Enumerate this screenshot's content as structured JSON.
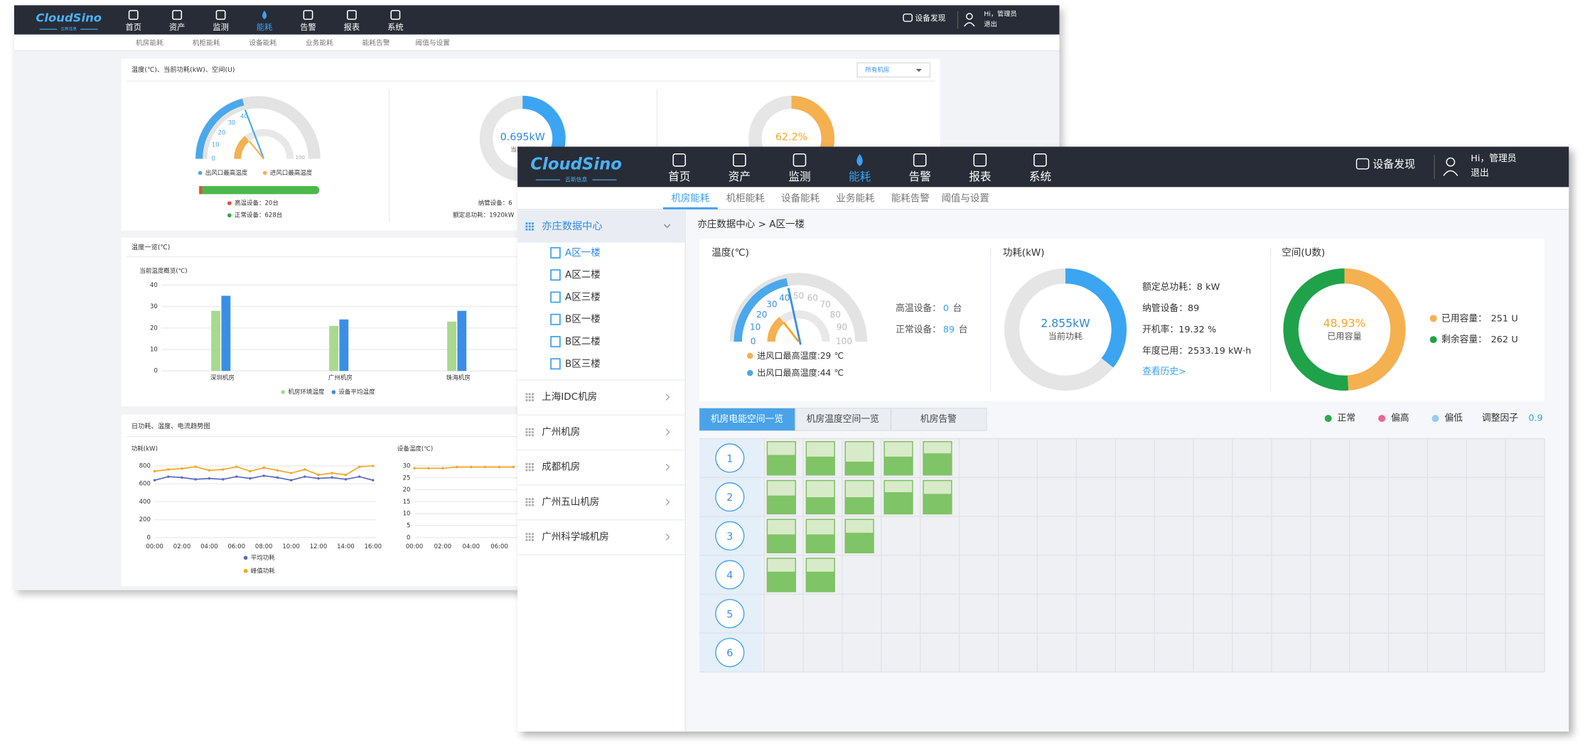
{
  "back_window": {
    "header": {
      "logo": "CloudSino",
      "logo_sub": "云新信息",
      "nav": [
        "首页",
        "资产",
        "监测",
        "能耗",
        "告警",
        "报表",
        "系统"
      ],
      "active_nav": 3,
      "discover": "设备发现",
      "user": "Hi，管理员",
      "logout": "退出"
    },
    "subnav": [
      "机房能耗",
      "机柜能耗",
      "设备能耗",
      "业务能耗",
      "能耗告警",
      "阈值与设置"
    ],
    "overview": {
      "title": "温度(℃)、当前功耗(kW)、空间(U)",
      "select": "所有机房",
      "gauge": {
        "ticks": [
          0,
          10,
          20,
          30,
          40
        ],
        "max_label": "100",
        "outlet": 42,
        "inlet": 28
      },
      "legend": [
        "出风口最高温度",
        "进风口最高温度"
      ],
      "high_devices": "高温设备：20台",
      "normal_devices": "正常设备：628台",
      "power_value": 0.695,
      "power_unit": "kW",
      "power_label": "当前功耗",
      "power_load": 30,
      "managed": "纳管设备：6",
      "rated": "额定总功耗：1920kW",
      "space_percent": 62.2,
      "percent_unit": "%"
    },
    "temp_chart": {
      "type": "bar",
      "title": "温度一览(℃)",
      "subtitle": "当前温度概览(℃)",
      "categories": [
        "深圳机房",
        "广州机房",
        "珠海机房"
      ],
      "series": [
        {
          "name": "机房环境温度",
          "color": "#a9d88f",
          "values": [
            28,
            21,
            23
          ]
        },
        {
          "name": "设备平均温度",
          "color": "#3a8ee6",
          "values": [
            35,
            24,
            28
          ]
        }
      ],
      "ylim": [
        0,
        40
      ],
      "yticks": [
        0,
        10,
        20,
        30,
        40
      ]
    },
    "trend": {
      "title": "日功耗、温度、电流趋势图",
      "power_chart": {
        "type": "line",
        "ylabel": "功耗(kW)",
        "categories": [
          "00:00",
          null,
          "02:00",
          null,
          "04:00",
          null,
          "06:00",
          null,
          "08:00",
          null,
          "10:00",
          null,
          "12:00",
          null,
          "14:00",
          null,
          "16:00"
        ],
        "series": [
          {
            "name": "平均功耗",
            "color": "#5b6bbf",
            "values": [
              640,
              680,
              670,
              650,
              660,
              650,
              680,
              660,
              690,
              670,
              640,
              680,
              660,
              670,
              650,
              680,
              640
            ]
          },
          {
            "name": "峰值功耗",
            "color": "#f5a623",
            "values": [
              740,
              760,
              770,
              790,
              750,
              760,
              790,
              740,
              780,
              750,
              720,
              760,
              700,
              720,
              700,
              790,
              800
            ]
          }
        ],
        "ylim": [
          0,
          800
        ],
        "yticks": [
          0,
          200,
          400,
          600,
          800
        ]
      },
      "temp_chart": {
        "type": "line",
        "ylabel": "设备温度(℃)",
        "categories": [
          "00:00",
          null,
          "02:00",
          null,
          "04:00",
          null,
          "06:00",
          null
        ],
        "series": [
          {
            "color": "#f5a623",
            "values": [
              29,
              29,
              29,
              29.5,
              29.5,
              29.5,
              29.5,
              29.5
            ]
          }
        ],
        "ylim": [
          0,
          30
        ],
        "yticks": [
          0,
          5,
          10,
          15,
          20,
          25,
          30
        ]
      }
    }
  },
  "front_window": {
    "header": {
      "logo": "CloudSino",
      "logo_sub": "云新信息",
      "nav": [
        "首页",
        "资产",
        "监测",
        "能耗",
        "告警",
        "报表",
        "系统"
      ],
      "active_nav": 3,
      "discover": "设备发现",
      "user": "Hi，管理员",
      "logout": "退出"
    },
    "subnav": [
      "机房能耗",
      "机柜能耗",
      "设备能耗",
      "业务能耗",
      "能耗告警",
      "阈值与设置"
    ],
    "active_subnav": 0,
    "sidebar": [
      {
        "name": "亦庄数据中心",
        "children": [
          "A区一楼",
          "A区二楼",
          "A区三楼",
          "B区一楼",
          "B区二楼",
          "B区三楼"
        ]
      },
      {
        "name": "上海IDC机房"
      },
      {
        "name": "广州机房"
      },
      {
        "name": "成都机房"
      },
      {
        "name": "广州五山机房"
      },
      {
        "name": "广州科学城机房"
      }
    ],
    "breadcrumb": "亦庄数据中心 > A区一楼",
    "temperature": {
      "title": "温度(℃)",
      "ticks": [
        0,
        10,
        20,
        30,
        40,
        50,
        60,
        70,
        80,
        90,
        100
      ],
      "high_label": "高温设备：",
      "high_count": 0,
      "normal_label": "正常设备：",
      "normal_count": 89,
      "count_unit": "台",
      "inlet_label": "进风口最高温度:",
      "inlet": 29,
      "outlet_label": "出风口最高温度:",
      "outlet": 44,
      "temp_unit": "℃"
    },
    "power": {
      "title": "功耗(kW)",
      "current": 2.855,
      "unit": "kW",
      "current_label": "当前功耗",
      "rated_label": "额定总功耗：",
      "rated": 8,
      "rated_unit": "kW",
      "managed_label": "纳管设备：",
      "managed": 89,
      "uptime_label": "开机率：",
      "uptime": 19.32,
      "uptime_unit": "%",
      "annual_label": "年度已用：",
      "annual": 2533.19,
      "annual_unit": "kW·h",
      "history": "查看历史>"
    },
    "space": {
      "title": "空间(U数)",
      "used_percent": 48.93,
      "percent_unit": "%",
      "used_caption": "已用容量",
      "used_label": "已用容量：",
      "used": 251,
      "remaining_label": "剩余容量：",
      "remaining": 262,
      "u_unit": "U"
    },
    "tabs": [
      "机房电能空间一览",
      "机房温度空间一览",
      "机房告警"
    ],
    "active_tab": 0,
    "legend": [
      {
        "name": "正常",
        "color": "#2eaa4a"
      },
      {
        "name": "偏高",
        "color": "#f06292"
      },
      {
        "name": "偏低",
        "color": "#90cdf4"
      }
    ],
    "factor_label": "调整因子",
    "factor": 0.9,
    "rows": [
      1,
      2,
      3,
      4,
      5,
      6
    ],
    "racks": [
      [
        60,
        55,
        40,
        55,
        65
      ],
      [
        55,
        50,
        50,
        65,
        60
      ],
      [
        55,
        55,
        60
      ],
      [
        60,
        60
      ]
    ]
  }
}
